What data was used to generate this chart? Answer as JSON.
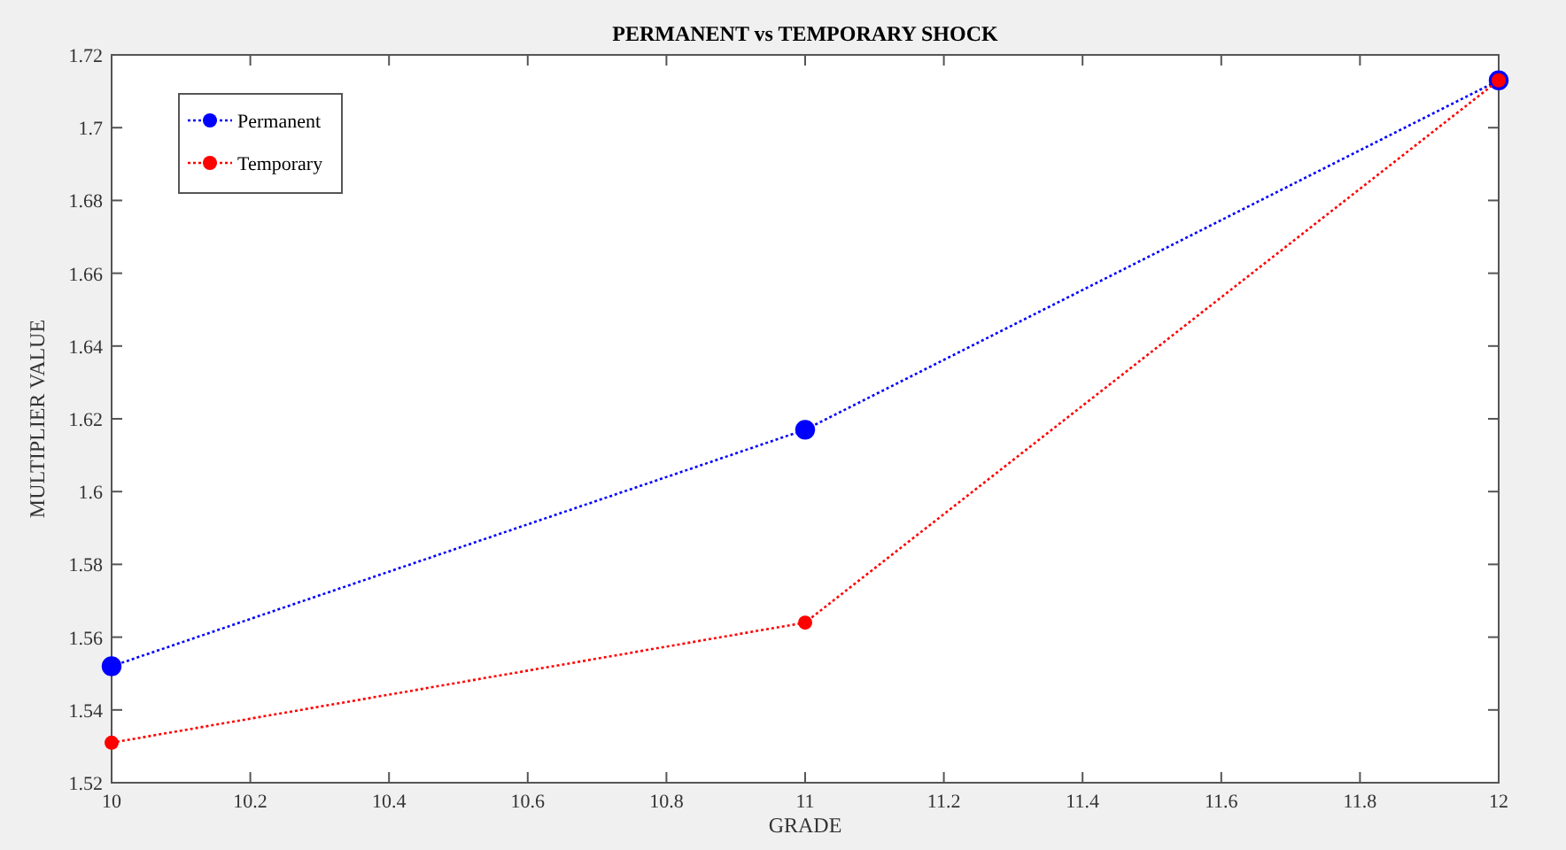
{
  "chart_data": {
    "type": "line",
    "title": "PERMANENT vs TEMPORARY SHOCK",
    "xlabel": "GRADE",
    "ylabel": "MULTIPLIER VALUE",
    "x": [
      10,
      11,
      12
    ],
    "series": [
      {
        "name": "Permanent",
        "color": "#0000ff",
        "values": [
          1.552,
          1.617,
          1.713
        ]
      },
      {
        "name": "Temporary",
        "color": "#ff0000",
        "values": [
          1.531,
          1.564,
          1.713
        ]
      }
    ],
    "xlim": [
      10,
      12
    ],
    "xticks": [
      10,
      10.2,
      10.4,
      10.6,
      10.8,
      11,
      11.2,
      11.4,
      11.6,
      11.8,
      12
    ],
    "ylim": [
      1.52,
      1.72
    ],
    "yticks": [
      1.52,
      1.54,
      1.56,
      1.58,
      1.6,
      1.62,
      1.64,
      1.66,
      1.68,
      1.7,
      1.72
    ],
    "grid": false,
    "legend": "top left",
    "marker": "circle",
    "line_style": "dotted"
  }
}
